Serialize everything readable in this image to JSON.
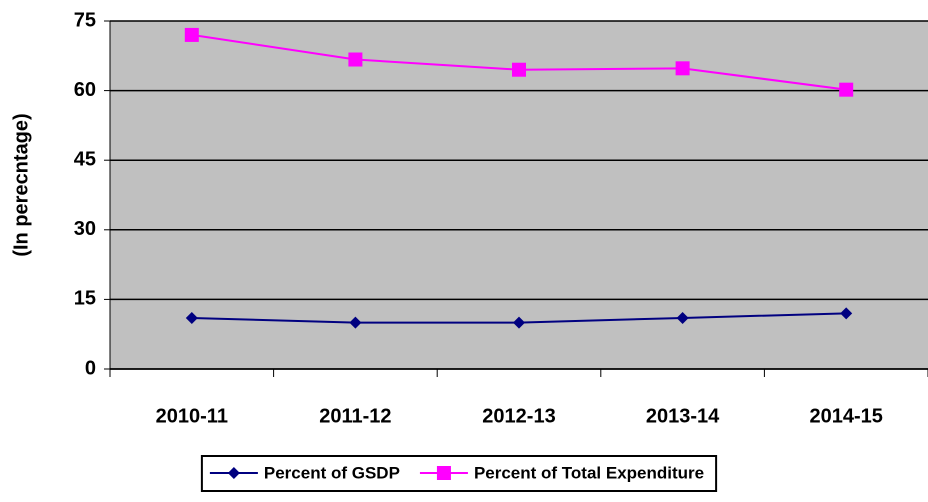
{
  "chart_data": {
    "type": "line",
    "y_label": "(In perecntage)",
    "categories": [
      "2010-11",
      "2011-12",
      "2012-13",
      "2013-14",
      "2014-15"
    ],
    "series": [
      {
        "name": "Percent of GSDP",
        "color": "#000080",
        "marker": "diamond",
        "values": [
          11,
          10,
          10,
          11,
          12
        ]
      },
      {
        "name": "Percent of Total Expenditure",
        "color": "#ff00ff",
        "marker": "square",
        "values": [
          72,
          66.7,
          64.5,
          64.8,
          60.2
        ]
      }
    ],
    "ylim": [
      0,
      75
    ],
    "yticks": [
      0,
      15,
      30,
      45,
      60,
      75
    ],
    "grid": true,
    "legend": "bottom"
  }
}
